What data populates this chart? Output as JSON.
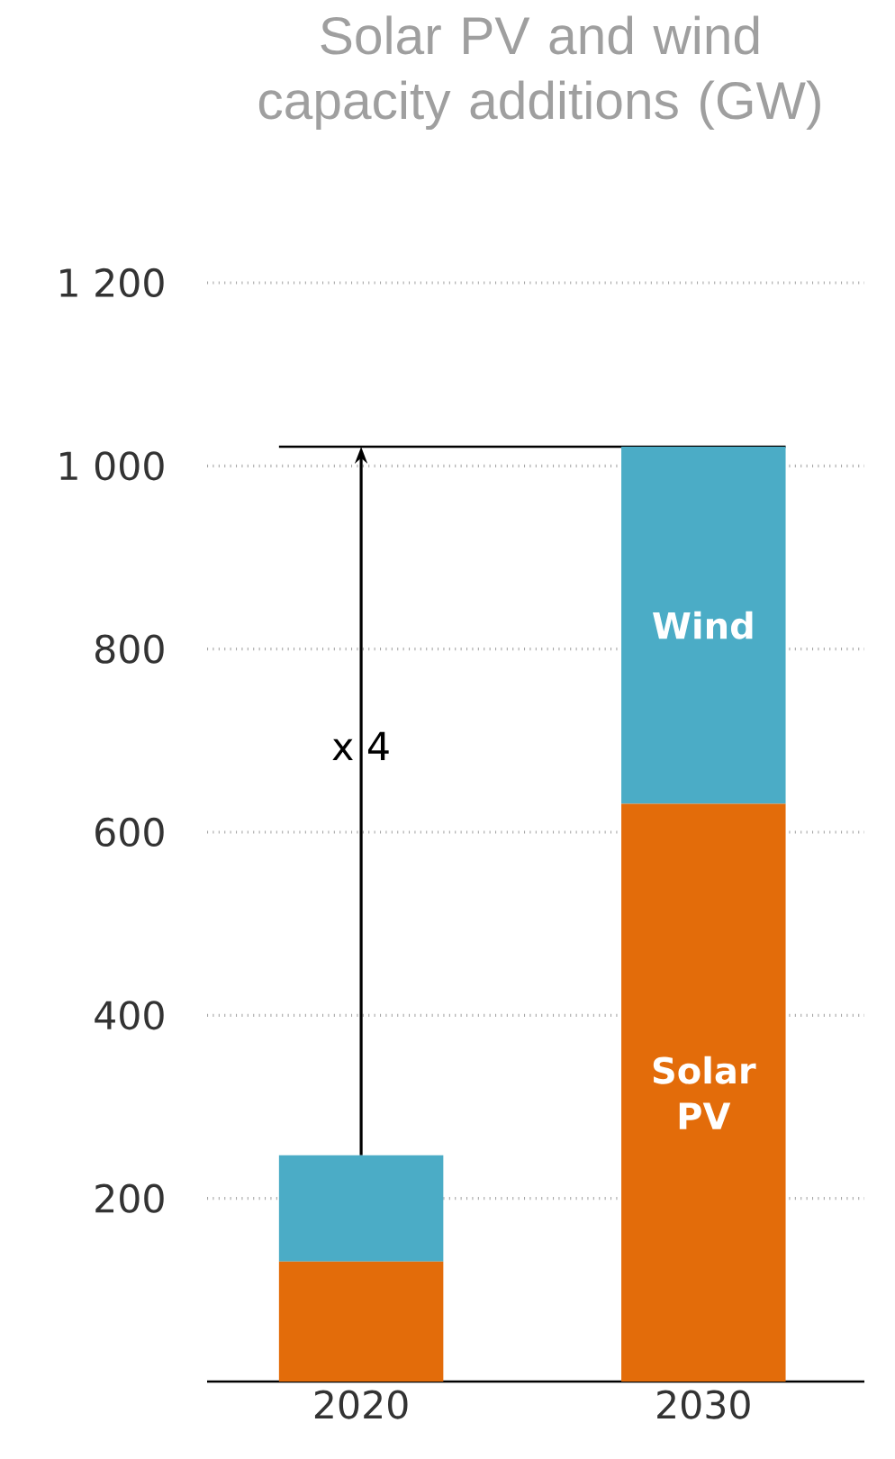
{
  "chart_data": {
    "type": "bar",
    "stacked": true,
    "title": "Solar PV and wind capacity additions (GW)",
    "categories": [
      "2020",
      "2030"
    ],
    "series": [
      {
        "name": "Solar PV",
        "color": "#e36c0a",
        "values": [
          131,
          631
        ]
      },
      {
        "name": "Wind",
        "color": "#4bacc6",
        "values": [
          116,
          390
        ]
      }
    ],
    "ylim": [
      0,
      1200
    ],
    "yticks": [
      {
        "value": 200,
        "label": "200"
      },
      {
        "value": 400,
        "label": "400"
      },
      {
        "value": 600,
        "label": "600"
      },
      {
        "value": 800,
        "label": "800"
      },
      {
        "value": 1000,
        "label": "1 000"
      },
      {
        "value": 1200,
        "label": "1 200"
      }
    ],
    "grid": "y",
    "ref_lines": [
      {
        "axis": "y",
        "value": 1021,
        "color": "#000000"
      }
    ],
    "annotations": [
      "x 4"
    ]
  }
}
